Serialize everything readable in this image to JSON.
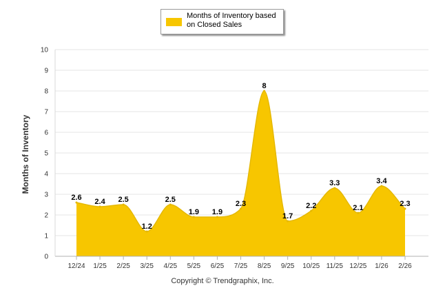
{
  "chart_data": {
    "type": "area",
    "title": "",
    "xlabel": "",
    "ylabel": "Months of Inventory",
    "ylim": [
      0,
      10
    ],
    "yticks": [
      "0",
      "1",
      "2",
      "3",
      "4",
      "5",
      "6",
      "7",
      "8",
      "9",
      "10"
    ],
    "categories": [
      "12/24",
      "1/25",
      "2/25",
      "3/25",
      "4/25",
      "5/25",
      "6/25",
      "7/25",
      "8/25",
      "9/25",
      "10/25",
      "11/25",
      "12/25",
      "1/26",
      "2/26"
    ],
    "series": [
      {
        "name": "Months of Inventory based on Closed Sales",
        "values": [
          2.6,
          2.4,
          2.5,
          1.2,
          2.5,
          1.9,
          1.9,
          2.3,
          8,
          1.7,
          2.2,
          3.3,
          2.1,
          3.4,
          2.3
        ],
        "labels": [
          "2.6",
          "2.4",
          "2.5",
          "1.2",
          "2.5",
          "1.9",
          "1.9",
          "2.3",
          "8",
          "1.7",
          "2.2",
          "3.3",
          "2.1",
          "3.4",
          "2.3"
        ]
      }
    ],
    "legend_position": "top-center",
    "grid": true
  },
  "colors": {
    "area_fill": "#F7C600",
    "area_stroke": "#E5B800",
    "grid": "#e6e6e6",
    "axis": "#b0b0b0"
  },
  "legend": {
    "label": "Months of Inventory based on Closed Sales"
  },
  "footer": {
    "copyright": "Copyright © Trendgraphix, Inc."
  }
}
